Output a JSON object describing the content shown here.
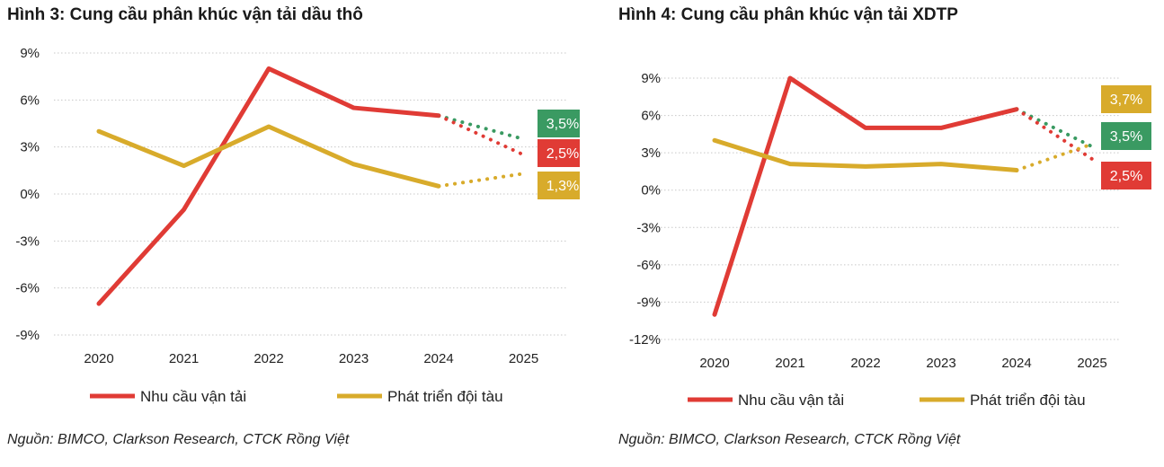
{
  "colors": {
    "demand": "#e03b35",
    "supply": "#d8ab2b",
    "green": "#3a9a62",
    "grid": "#c8c8c8"
  },
  "panels": [
    {
      "title": "Hình 3: Cung cầu phân khúc vận tải dầu thô",
      "source": "Nguồn: BIMCO, Clarkson Research, CTCK Rồng Việt"
    },
    {
      "title": "Hình 4: Cung cầu phân khúc vận tải XDTP",
      "source": "Nguồn: BIMCO, Clarkson Research, CTCK Rồng Việt"
    }
  ],
  "chart_data": [
    {
      "type": "line",
      "title": "Hình 3: Cung cầu phân khúc vận tải dầu thô",
      "categories": [
        "2020",
        "2021",
        "2022",
        "2023",
        "2024",
        "2025"
      ],
      "ylim": [
        -9,
        9
      ],
      "yticks": [
        "9%",
        "6%",
        "3%",
        "0%",
        "-3%",
        "-6%",
        "-9%"
      ],
      "grid": true,
      "legend_position": "bottom",
      "series": [
        {
          "name": "Nhu cầu vận tải",
          "color": "#e03b35",
          "values": [
            -7,
            -1,
            8,
            5.5,
            5,
            null
          ],
          "forecast": [
            5,
            3.5,
            2.5
          ]
        },
        {
          "name": "Phát triển đội tàu",
          "color": "#d8ab2b",
          "values": [
            4,
            1.8,
            4.3,
            1.9,
            0.5,
            null
          ],
          "forecast": [
            0.5,
            1.3
          ]
        }
      ],
      "labels_2025": [
        {
          "text": "3,5%",
          "color": "#3a9a62"
        },
        {
          "text": "2,5%",
          "color": "#e03b35"
        },
        {
          "text": "1,3%",
          "color": "#d8ab2b"
        }
      ]
    },
    {
      "type": "line",
      "title": "Hình 4: Cung cầu phân khúc vận tải XDTP",
      "categories": [
        "2020",
        "2021",
        "2022",
        "2023",
        "2024",
        "2025"
      ],
      "ylim": [
        -12,
        9
      ],
      "yticks": [
        "9%",
        "6%",
        "3%",
        "0%",
        "-3%",
        "-6%",
        "-9%",
        "-12%"
      ],
      "grid": true,
      "legend_position": "bottom",
      "series": [
        {
          "name": "Nhu cầu vận tải",
          "color": "#e03b35",
          "values": [
            -10,
            9,
            5,
            5,
            6.5,
            null
          ],
          "forecast": [
            6.5,
            3.5,
            2.5
          ]
        },
        {
          "name": "Phát triển đội tàu",
          "color": "#d8ab2b",
          "values": [
            4,
            2.1,
            1.9,
            2.1,
            1.6,
            null
          ],
          "forecast": [
            1.6,
            3.7
          ]
        }
      ],
      "labels_2025": [
        {
          "text": "3,7%",
          "color": "#d8ab2b"
        },
        {
          "text": "3,5%",
          "color": "#3a9a62"
        },
        {
          "text": "2,5%",
          "color": "#e03b35"
        }
      ]
    }
  ]
}
